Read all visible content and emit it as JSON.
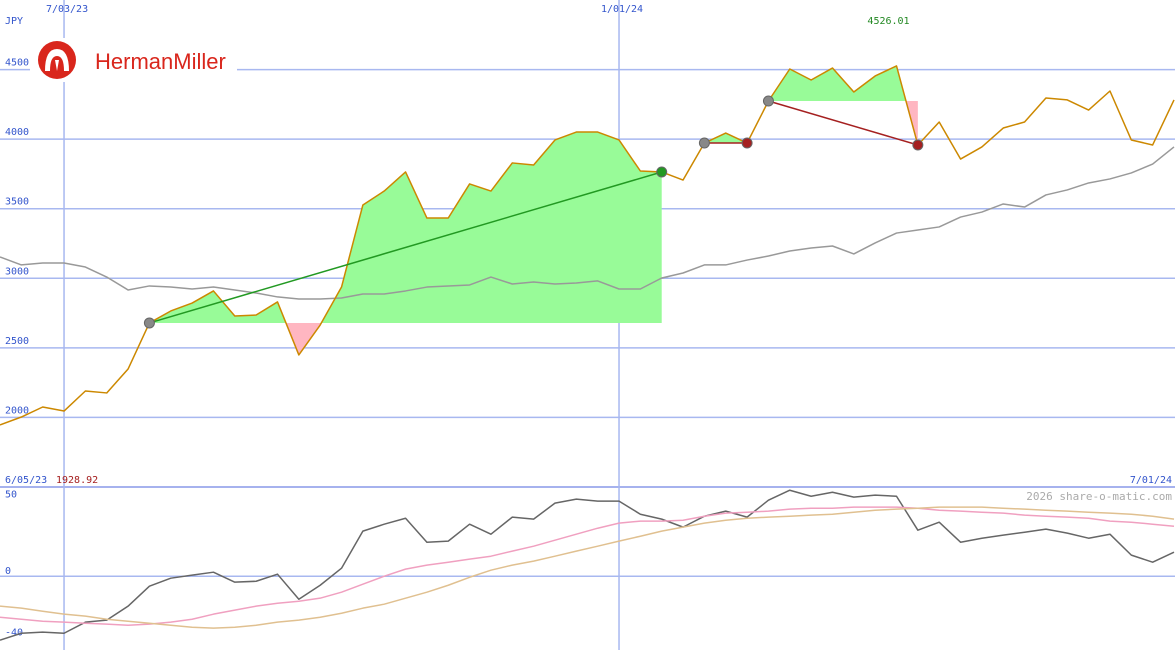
{
  "logo": "HermanMiller",
  "chart_data": [
    {
      "type": "line",
      "unit": "JPY",
      "categories": [
        null,
        null,
        null,
        "7/03/23",
        null,
        null,
        null,
        null,
        null,
        null,
        null,
        null,
        null,
        null,
        null,
        null,
        null,
        null,
        null,
        null,
        null,
        null,
        null,
        null,
        null,
        null,
        null,
        null,
        null,
        "1/01/24",
        null,
        null,
        null,
        null,
        null,
        null,
        null,
        null,
        null,
        null,
        null,
        null,
        null,
        null,
        null,
        null,
        null,
        null,
        null,
        null,
        null,
        null,
        null,
        null,
        null,
        null
      ],
      "start_date": "6/05/23",
      "end_date": "7/01/24",
      "high": 4526.01,
      "low": 1928.92,
      "ylim": [
        1500,
        5000
      ],
      "yticks": [
        2000,
        2500,
        3000,
        3500,
        4000,
        4500
      ],
      "grid": true,
      "series": [
        {
          "color": "#cc8800",
          "values": [
            1946,
            2003,
            2075,
            2046,
            2190,
            2176,
            2348,
            2679,
            2765,
            2822,
            2909,
            2729,
            2736,
            2830,
            2449,
            2664,
            2937,
            3527,
            3627,
            3764,
            3433,
            3433,
            3678,
            3627,
            3829,
            3814,
            3994,
            4051,
            4051,
            3994,
            3771,
            3764,
            3706,
            3972,
            4044,
            3972,
            4274,
            4504,
            4425,
            4511,
            4339,
            4454,
            4526.01,
            3958,
            4123,
            3857,
            3944,
            4080,
            4123,
            4296,
            4282,
            4209,
            4346,
            3994,
            3958,
            4282
          ]
        },
        {
          "color": "#999999",
          "values": [
            3153,
            3096,
            3110,
            3110,
            3081,
            3009,
            2916,
            2945,
            2937,
            2923,
            2937,
            2916,
            2894,
            2866,
            2851,
            2851,
            2858,
            2887,
            2887,
            2909,
            2937,
            2945,
            2952,
            3009,
            2959,
            2973,
            2959,
            2966,
            2981,
            2923,
            2923,
            3002,
            3038,
            3096,
            3096,
            3131,
            3160,
            3196,
            3218,
            3232,
            3175,
            3254,
            3325,
            3347,
            3369,
            3440,
            3476,
            3534,
            3512,
            3599,
            3635,
            3685,
            3714,
            3757,
            3821,
            3944
          ]
        }
      ],
      "trades": [
        {
          "start": 7,
          "end": 31,
          "color": "#229922"
        },
        {
          "start": 33,
          "end": 35,
          "color": "#a52020"
        },
        {
          "start": 36,
          "end": 43,
          "color": "#a52020"
        }
      ]
    },
    {
      "type": "line",
      "watermark": "2026 share-o-matic.com",
      "ylim": [
        -48,
        58
      ],
      "yticks": [
        -40,
        0,
        50
      ],
      "zero_line": true,
      "series": [
        {
          "color": "#666666",
          "values": [
            -41.6,
            -37.1,
            -36.4,
            -37.1,
            -29.9,
            -28.6,
            -19.5,
            -6.5,
            -1.3,
            0.7,
            2.6,
            -3.9,
            -3.3,
            1.3,
            -15.0,
            -5.9,
            5.2,
            29.3,
            33.8,
            37.7,
            22.1,
            22.8,
            33.8,
            27.3,
            38.4,
            37.1,
            47.5,
            50.1,
            48.8,
            48.8,
            40.3,
            37.1,
            31.9,
            39.0,
            42.3,
            38.4,
            49.4,
            55.9,
            52.0,
            54.6,
            51.4,
            52.7,
            52.0,
            29.9,
            35.1,
            22.1,
            24.7,
            26.7,
            28.6,
            30.6,
            28.0,
            24.7,
            27.3,
            13.7,
            9.1,
            15.6
          ]
        },
        {
          "color": "#f0a0c0",
          "values": [
            -26.7,
            -28.0,
            -29.3,
            -29.9,
            -30.6,
            -31.2,
            -31.9,
            -31.2,
            -29.9,
            -28.0,
            -24.7,
            -22.1,
            -19.5,
            -17.6,
            -16.3,
            -14.3,
            -10.4,
            -5.2,
            0,
            4.6,
            7.2,
            9.1,
            11.1,
            13.0,
            16.3,
            19.5,
            23.4,
            27.3,
            31.2,
            34.5,
            35.8,
            35.8,
            36.4,
            39.0,
            41.0,
            41.6,
            42.3,
            43.6,
            44.2,
            44.2,
            44.9,
            44.9,
            44.9,
            44.2,
            42.9,
            42.3,
            41.6,
            41.0,
            39.7,
            39.0,
            38.4,
            37.7,
            35.8,
            35.1,
            33.8,
            32.5
          ]
        },
        {
          "color": "#e0c090",
          "values": [
            -19.5,
            -20.8,
            -22.8,
            -24.7,
            -26.0,
            -28.0,
            -29.3,
            -30.6,
            -31.9,
            -33.2,
            -33.8,
            -33.2,
            -31.9,
            -29.9,
            -28.6,
            -26.7,
            -24.1,
            -20.8,
            -18.2,
            -14.3,
            -10.4,
            -5.9,
            -0.7,
            3.9,
            7.2,
            9.8,
            13.0,
            16.3,
            19.5,
            22.8,
            26.0,
            29.3,
            31.9,
            34.5,
            36.4,
            37.7,
            38.4,
            39.0,
            39.7,
            40.3,
            41.6,
            42.9,
            43.6,
            44.2,
            44.9,
            44.9,
            44.9,
            44.2,
            43.6,
            42.9,
            42.3,
            41.6,
            41.0,
            40.3,
            39.0,
            37.1
          ]
        }
      ]
    }
  ]
}
